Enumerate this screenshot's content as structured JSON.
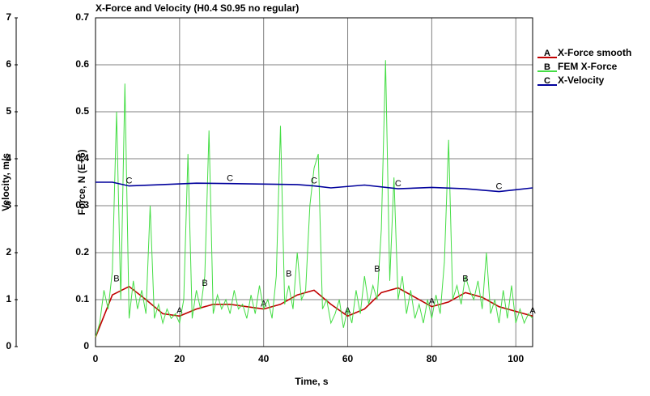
{
  "chart_data": {
    "type": "line",
    "title": "X-Force and Velocity (H0.4 S0.95 no regular)",
    "x_label": "Time, s",
    "y_label": "Force, N  (E+6)",
    "y2_label": "Velocity, m/s",
    "xlim": [
      0,
      104
    ],
    "xticks": [
      0,
      20,
      40,
      60,
      80,
      100
    ],
    "ylim": [
      0,
      0.7
    ],
    "yticks": [
      0,
      0.1,
      0.2,
      0.3,
      0.4,
      0.5,
      0.6,
      0.7
    ],
    "y2lim": [
      0,
      7
    ],
    "y2ticks": [
      0,
      1,
      2,
      3,
      4,
      5,
      6,
      7
    ],
    "grid": true,
    "series": [
      {
        "name": "X-Force smooth",
        "marker": "A",
        "color": "#c00000",
        "x": [
          0,
          4,
          8,
          12,
          16,
          20,
          24,
          28,
          32,
          36,
          40,
          44,
          48,
          52,
          56,
          60,
          64,
          68,
          72,
          76,
          80,
          84,
          88,
          92,
          96,
          100,
          104
        ],
        "values": [
          0.02,
          0.11,
          0.128,
          0.1,
          0.07,
          0.065,
          0.08,
          0.09,
          0.09,
          0.085,
          0.08,
          0.09,
          0.11,
          0.12,
          0.09,
          0.065,
          0.08,
          0.115,
          0.125,
          0.105,
          0.085,
          0.095,
          0.115,
          0.105,
          0.085,
          0.075,
          0.065
        ]
      },
      {
        "name": "FEM X-Force",
        "marker": "B",
        "color": "#44dd44",
        "x": [
          0,
          1,
          2,
          3,
          4,
          5,
          6,
          7,
          8,
          9,
          10,
          11,
          12,
          13,
          14,
          15,
          16,
          17,
          18,
          19,
          20,
          21,
          22,
          23,
          24,
          25,
          26,
          27,
          28,
          29,
          30,
          31,
          32,
          33,
          34,
          35,
          36,
          37,
          38,
          39,
          40,
          41,
          42,
          43,
          44,
          45,
          46,
          47,
          48,
          49,
          50,
          51,
          52,
          53,
          54,
          55,
          56,
          57,
          58,
          59,
          60,
          61,
          62,
          63,
          64,
          65,
          66,
          67,
          68,
          69,
          70,
          71,
          72,
          73,
          74,
          75,
          76,
          77,
          78,
          79,
          80,
          81,
          82,
          83,
          84,
          85,
          86,
          87,
          88,
          89,
          90,
          91,
          92,
          93,
          94,
          95,
          96,
          97,
          98,
          99,
          100,
          101,
          102,
          103,
          104
        ],
        "values": [
          0.02,
          0.05,
          0.12,
          0.08,
          0.16,
          0.5,
          0.1,
          0.56,
          0.06,
          0.14,
          0.08,
          0.12,
          0.07,
          0.3,
          0.06,
          0.09,
          0.05,
          0.08,
          0.06,
          0.07,
          0.05,
          0.1,
          0.41,
          0.06,
          0.12,
          0.08,
          0.15,
          0.46,
          0.07,
          0.11,
          0.08,
          0.1,
          0.07,
          0.12,
          0.08,
          0.09,
          0.06,
          0.11,
          0.07,
          0.13,
          0.08,
          0.1,
          0.06,
          0.15,
          0.47,
          0.09,
          0.13,
          0.08,
          0.2,
          0.1,
          0.12,
          0.3,
          0.38,
          0.41,
          0.08,
          0.1,
          0.05,
          0.07,
          0.1,
          0.04,
          0.08,
          0.05,
          0.12,
          0.07,
          0.15,
          0.09,
          0.13,
          0.1,
          0.25,
          0.61,
          0.14,
          0.36,
          0.1,
          0.15,
          0.07,
          0.12,
          0.06,
          0.09,
          0.05,
          0.1,
          0.06,
          0.11,
          0.07,
          0.18,
          0.44,
          0.1,
          0.13,
          0.09,
          0.15,
          0.12,
          0.1,
          0.14,
          0.08,
          0.2,
          0.07,
          0.1,
          0.05,
          0.12,
          0.06,
          0.13,
          0.05,
          0.08,
          0.05,
          0.07,
          0.06
        ]
      },
      {
        "name": "X-Velocity",
        "marker": "C",
        "color": "#00009c",
        "axis": "y2",
        "x": [
          0,
          4,
          8,
          16,
          24,
          32,
          40,
          48,
          52,
          56,
          64,
          72,
          80,
          88,
          96,
          104
        ],
        "values": [
          3.5,
          3.5,
          3.42,
          3.45,
          3.48,
          3.47,
          3.46,
          3.45,
          3.42,
          3.38,
          3.44,
          3.36,
          3.39,
          3.36,
          3.3,
          3.38
        ]
      }
    ]
  }
}
